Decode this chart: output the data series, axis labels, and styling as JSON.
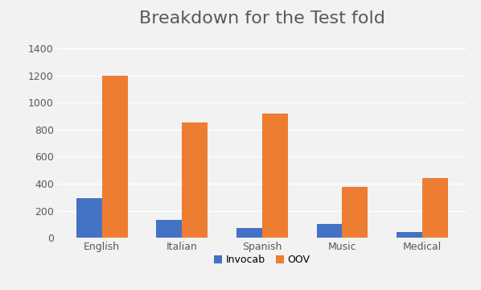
{
  "title": "Breakdown for the Test fold",
  "categories": [
    "English",
    "Italian",
    "Spanish",
    "Music",
    "Medical"
  ],
  "invocab": [
    290,
    135,
    75,
    105,
    45
  ],
  "oov": [
    1200,
    850,
    915,
    375,
    440
  ],
  "invocab_color": "#4472c4",
  "oov_color": "#ed7d31",
  "ylim": [
    0,
    1500
  ],
  "yticks": [
    0,
    200,
    400,
    600,
    800,
    1000,
    1200,
    1400
  ],
  "legend_labels": [
    "Invocab",
    "OOV"
  ],
  "background_color": "#f2f2f2",
  "plot_bg_color": "#f2f2f2",
  "grid_color": "#ffffff",
  "title_fontsize": 16,
  "tick_fontsize": 9,
  "legend_fontsize": 9,
  "bar_width": 0.32,
  "title_color": "#595959"
}
